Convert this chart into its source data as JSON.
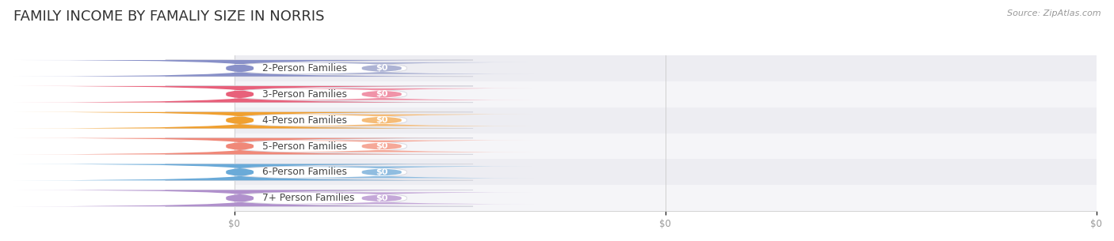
{
  "title": "FAMILY INCOME BY FAMALIY SIZE IN NORRIS",
  "source": "Source: ZipAtlas.com",
  "categories": [
    "2-Person Families",
    "3-Person Families",
    "4-Person Families",
    "5-Person Families",
    "6-Person Families",
    "7+ Person Families"
  ],
  "values": [
    0,
    0,
    0,
    0,
    0,
    0
  ],
  "bar_colors": [
    "#adb3d4",
    "#f093a8",
    "#f5bc78",
    "#f5a898",
    "#90bde0",
    "#c4a8d8"
  ],
  "dot_colors": [
    "#8890c8",
    "#e8607a",
    "#f0a030",
    "#f08878",
    "#6aaad8",
    "#b090cc"
  ],
  "row_bg_even": "#ededf2",
  "row_bg_odd": "#f5f5f8",
  "value_label": "$0",
  "xtick_labels": [
    "$0",
    "$0",
    "$0"
  ],
  "title_fontsize": 13,
  "source_fontsize": 8
}
